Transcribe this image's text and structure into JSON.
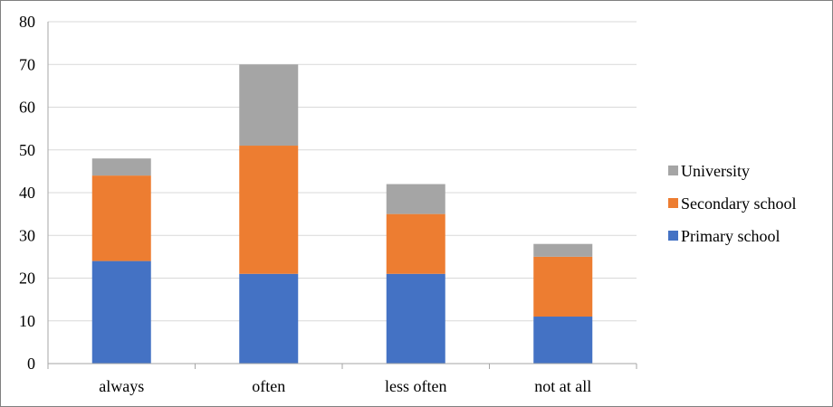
{
  "chart_data": {
    "type": "bar",
    "stacked": true,
    "categories": [
      "always",
      "often",
      "less often",
      "not at all"
    ],
    "series": [
      {
        "name": "Primary school",
        "values": [
          24,
          21,
          21,
          11
        ],
        "color": "#4472C4"
      },
      {
        "name": "Secondary school",
        "values": [
          20,
          30,
          14,
          14
        ],
        "color": "#ED7D31"
      },
      {
        "name": "University",
        "values": [
          4,
          19,
          7,
          3
        ],
        "color": "#A5A5A5"
      }
    ],
    "y_ticks": [
      "0",
      "10",
      "20",
      "30",
      "40",
      "50",
      "60",
      "70",
      "80"
    ],
    "ylim": [
      0,
      80
    ],
    "grid": true,
    "legend_position": "right",
    "legend_order": [
      "University",
      "Secondary school",
      "Primary school"
    ]
  }
}
